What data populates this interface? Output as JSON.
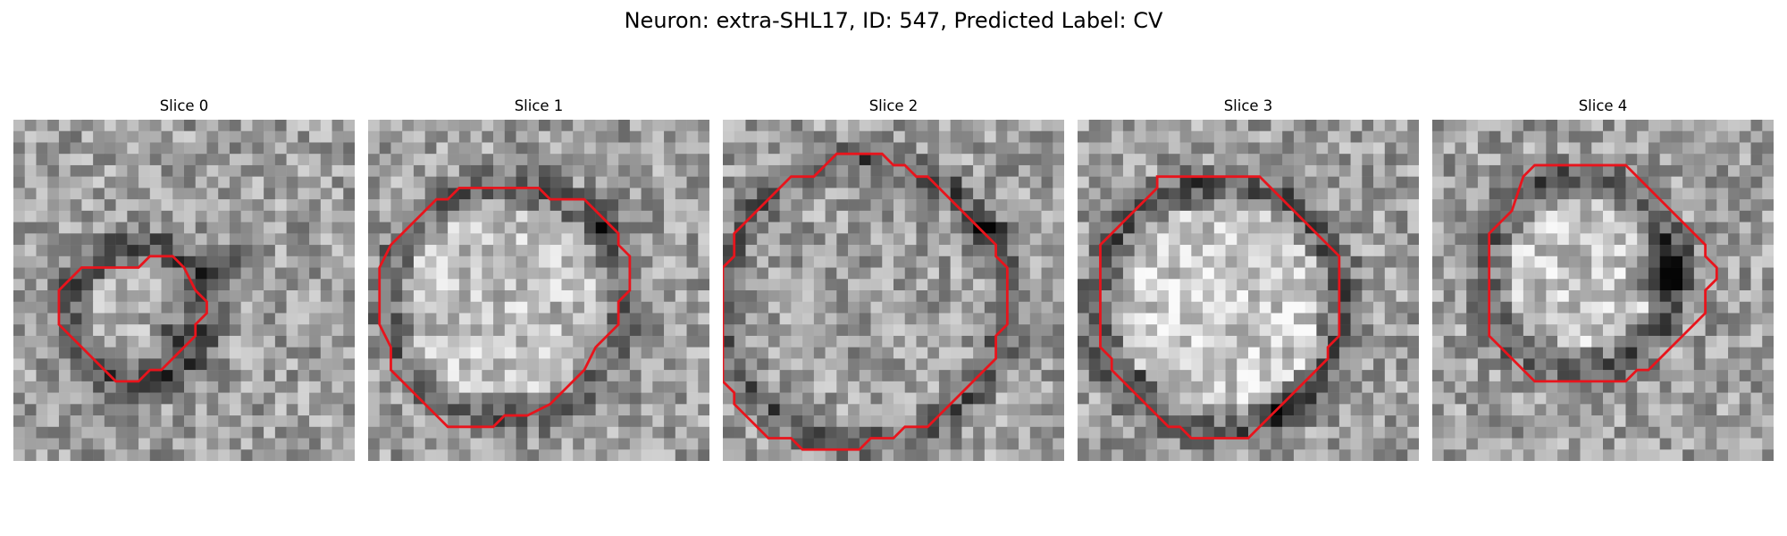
{
  "figure": {
    "title": "Neuron: extra-SHL17, ID: 547, Predicted Label: CV",
    "colors": {
      "outline": "#e8141c",
      "background": "#ffffff",
      "colormap": "gray"
    },
    "panels": [
      {
        "label": "Slice 0",
        "outline_points": [
          [
            11,
            13
          ],
          [
            12,
            12
          ],
          [
            14,
            12
          ],
          [
            15,
            13
          ],
          [
            16,
            15
          ],
          [
            17,
            16
          ],
          [
            17,
            17
          ],
          [
            16,
            18
          ],
          [
            16,
            19
          ],
          [
            15,
            20
          ],
          [
            14,
            21
          ],
          [
            13,
            22
          ],
          [
            12,
            22
          ],
          [
            11,
            23
          ],
          [
            9,
            23
          ],
          [
            8,
            22
          ],
          [
            7,
            21
          ],
          [
            6,
            20
          ],
          [
            5,
            19
          ],
          [
            4,
            18
          ],
          [
            4,
            15
          ],
          [
            5,
            14
          ],
          [
            6,
            13
          ],
          [
            9,
            13
          ]
        ]
      },
      {
        "label": "Slice 1",
        "outline_points": [
          [
            14,
            6
          ],
          [
            15,
            6
          ],
          [
            16,
            7
          ],
          [
            19,
            7
          ],
          [
            20,
            8
          ],
          [
            21,
            9
          ],
          [
            22,
            10
          ],
          [
            22,
            11
          ],
          [
            23,
            12
          ],
          [
            23,
            15
          ],
          [
            22,
            16
          ],
          [
            22,
            18
          ],
          [
            21,
            19
          ],
          [
            20,
            20
          ],
          [
            19,
            22
          ],
          [
            18,
            23
          ],
          [
            17,
            24
          ],
          [
            16,
            25
          ],
          [
            14,
            26
          ],
          [
            12,
            26
          ],
          [
            11,
            27
          ],
          [
            7,
            27
          ],
          [
            6,
            26
          ],
          [
            5,
            25
          ],
          [
            4,
            24
          ],
          [
            3,
            23
          ],
          [
            2,
            22
          ],
          [
            2,
            20
          ],
          [
            1,
            18
          ],
          [
            1,
            13
          ],
          [
            2,
            11
          ],
          [
            3,
            10
          ],
          [
            4,
            9
          ],
          [
            5,
            8
          ],
          [
            6,
            7
          ],
          [
            7,
            7
          ],
          [
            8,
            6
          ],
          [
            13,
            6
          ]
        ]
      },
      {
        "label": "Slice 2",
        "outline_points": [
          [
            11,
            3
          ],
          [
            14,
            3
          ],
          [
            15,
            4
          ],
          [
            16,
            4
          ],
          [
            17,
            5
          ],
          [
            18,
            5
          ],
          [
            19,
            6
          ],
          [
            20,
            7
          ],
          [
            21,
            8
          ],
          [
            22,
            9
          ],
          [
            23,
            10
          ],
          [
            24,
            11
          ],
          [
            24,
            12
          ],
          [
            25,
            13
          ],
          [
            25,
            18
          ],
          [
            24,
            19
          ],
          [
            24,
            21
          ],
          [
            23,
            22
          ],
          [
            22,
            23
          ],
          [
            21,
            24
          ],
          [
            20,
            25
          ],
          [
            19,
            26
          ],
          [
            18,
            27
          ],
          [
            16,
            27
          ],
          [
            15,
            28
          ],
          [
            13,
            28
          ],
          [
            12,
            29
          ],
          [
            7,
            29
          ],
          [
            6,
            28
          ],
          [
            4,
            28
          ],
          [
            3,
            27
          ],
          [
            2,
            26
          ],
          [
            1,
            25
          ],
          [
            1,
            24
          ],
          [
            0,
            23
          ],
          [
            0,
            13
          ],
          [
            1,
            12
          ],
          [
            1,
            10
          ],
          [
            2,
            9
          ],
          [
            3,
            8
          ],
          [
            4,
            7
          ],
          [
            5,
            6
          ],
          [
            6,
            5
          ],
          [
            8,
            5
          ],
          [
            9,
            4
          ],
          [
            10,
            3
          ]
        ]
      },
      {
        "label": "Slice 3",
        "outline_points": [
          [
            7,
            5
          ],
          [
            16,
            5
          ],
          [
            17,
            6
          ],
          [
            18,
            7
          ],
          [
            19,
            8
          ],
          [
            20,
            9
          ],
          [
            21,
            10
          ],
          [
            22,
            11
          ],
          [
            23,
            12
          ],
          [
            23,
            19
          ],
          [
            22,
            20
          ],
          [
            22,
            21
          ],
          [
            21,
            22
          ],
          [
            20,
            23
          ],
          [
            19,
            24
          ],
          [
            18,
            25
          ],
          [
            17,
            26
          ],
          [
            16,
            27
          ],
          [
            15,
            28
          ],
          [
            10,
            28
          ],
          [
            9,
            27
          ],
          [
            8,
            27
          ],
          [
            7,
            26
          ],
          [
            6,
            25
          ],
          [
            5,
            24
          ],
          [
            4,
            23
          ],
          [
            3,
            22
          ],
          [
            3,
            21
          ],
          [
            2,
            20
          ],
          [
            2,
            11
          ],
          [
            3,
            10
          ],
          [
            4,
            9
          ],
          [
            5,
            8
          ],
          [
            6,
            7
          ],
          [
            7,
            6
          ]
        ]
      },
      {
        "label": "Slice 4",
        "outline_points": [
          [
            9,
            4
          ],
          [
            17,
            4
          ],
          [
            18,
            5
          ],
          [
            19,
            6
          ],
          [
            20,
            7
          ],
          [
            21,
            8
          ],
          [
            22,
            9
          ],
          [
            23,
            10
          ],
          [
            24,
            11
          ],
          [
            24,
            12
          ],
          [
            25,
            13
          ],
          [
            25,
            14
          ],
          [
            24,
            15
          ],
          [
            24,
            17
          ],
          [
            23,
            18
          ],
          [
            22,
            19
          ],
          [
            21,
            20
          ],
          [
            20,
            21
          ],
          [
            19,
            22
          ],
          [
            18,
            22
          ],
          [
            17,
            23
          ],
          [
            9,
            23
          ],
          [
            8,
            22
          ],
          [
            7,
            21
          ],
          [
            6,
            20
          ],
          [
            5,
            19
          ],
          [
            5,
            10
          ],
          [
            6,
            9
          ],
          [
            7,
            8
          ],
          [
            8,
            5
          ]
        ]
      }
    ]
  }
}
